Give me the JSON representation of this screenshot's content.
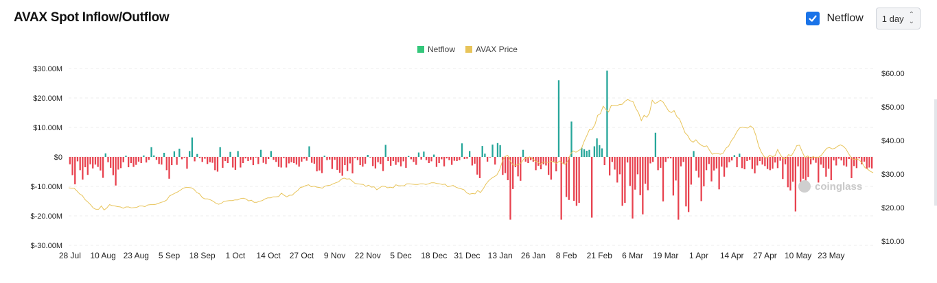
{
  "header": {
    "title": "AVAX Spot Inflow/Outflow",
    "netflow_label": "Netflow",
    "netflow_checked": true,
    "interval": "1 day"
  },
  "watermark": "coinglass",
  "colors": {
    "inflow": "#26a69a",
    "outflow": "#e8424f",
    "price": "#e8c45a",
    "legend_netflow": "#34c77b",
    "legend_price": "#e8c45a",
    "checkbox": "#1a73e8"
  },
  "chart_data": {
    "type": "bar",
    "legend": [
      "Netflow",
      "AVAX Price"
    ],
    "y_left_ticks": [
      "$30.00M",
      "$20.00M",
      "$10.00M",
      "$0",
      "$-10.00M",
      "$-20.00M",
      "$-30.00M"
    ],
    "y_left_range": [
      -30,
      30
    ],
    "y_right_ticks": [
      "$60.00",
      "$50.00",
      "$40.00",
      "$30.00",
      "$20.00",
      "$10.00"
    ],
    "y_right_range": [
      10,
      60
    ],
    "x_ticks": [
      "28 Jul",
      "10 Aug",
      "23 Aug",
      "5 Sep",
      "18 Sep",
      "1 Oct",
      "14 Oct",
      "27 Oct",
      "9 Nov",
      "22 Nov",
      "5 Dec",
      "18 Dec",
      "31 Dec",
      "13 Jan",
      "26 Jan",
      "8 Feb",
      "21 Feb",
      "6 Mar",
      "19 Mar",
      "1 Apr",
      "14 Apr",
      "27 Apr",
      "10 May",
      "23 May"
    ],
    "start_date": "28 Jul",
    "num_days": 302,
    "netflow_unit": "$M",
    "netflow": [
      -2.5,
      -6.2,
      -9.3,
      -1.5,
      -4.5,
      -7.7,
      -3.5,
      -6.1,
      -2.5,
      -3.9,
      -2.6,
      -3.4,
      -4.6,
      -7.1,
      1.2,
      -1.8,
      -3.7,
      -6.2,
      -9.7,
      -4.3,
      -3.8,
      -1.8,
      0.4,
      -3.5,
      -2.1,
      -3.4,
      -2.7,
      -1.6,
      -2.1,
      0.5,
      -1.9,
      -1.0,
      3.3,
      0.5,
      -1.0,
      -2.4,
      -2.6,
      1.4,
      -4.5,
      -7.4,
      -2.8,
      1.9,
      -2.7,
      2.8,
      -0.8,
      -0.3,
      -4.0,
      2.0,
      6.6,
      -1.5,
      1.0,
      -0.4,
      -1.7,
      -0.6,
      -2.4,
      -1.8,
      -2.0,
      -4.5,
      -5.0,
      3.3,
      -3.7,
      -1.4,
      -2.1,
      1.7,
      -3.6,
      -4.4,
      2.0,
      -3.6,
      -2.1,
      -0.5,
      -1.4,
      -1.0,
      -2.8,
      -0.2,
      -2.4,
      2.4,
      -2.0,
      -2.4,
      -0.7,
      2.0,
      -1.0,
      -1.7,
      -3.4,
      -3.6,
      -0.4,
      -3.6,
      -2.2,
      -1.8,
      -2.1,
      -2.6,
      -3.3,
      -1.6,
      -0.6,
      -1.3,
      3.6,
      -2.0,
      -2.3,
      -4.9,
      -4.6,
      -5.5,
      0.4,
      -1.1,
      -0.9,
      -4.1,
      -1.0,
      -4.4,
      -5.4,
      -6.4,
      -2.8,
      -4.8,
      -2.2,
      -5.6,
      -0.4,
      -1.1,
      -2.8,
      -3.3,
      -2.3,
      0.7,
      -0.2,
      -3.1,
      -3.9,
      -1.8,
      -2.4,
      -4.8,
      4.1,
      -1.4,
      -3.0,
      -1.4,
      -2.7,
      -1.8,
      -3.2,
      -1.5,
      -3.7,
      0.3,
      -0.8,
      -1.7,
      -2.7,
      1.5,
      -0.9,
      1.8,
      -1.1,
      -2.1,
      -1.5,
      0.8,
      -3.4,
      -2.1,
      -0.8,
      -3.2,
      -0.5,
      -1.1,
      -2.7,
      -1.3,
      -1.4,
      -1.1,
      4.6,
      -0.7,
      -0.6,
      2.0,
      -2.9,
      -2.3,
      -6.0,
      -7.2,
      3.7,
      1.1,
      -1.6,
      -0.2,
      4.2,
      -2.6,
      4.7,
      4.0,
      -6.1,
      -5.5,
      -7.9,
      -21.3,
      -10.9,
      -3.5,
      -6.6,
      -8.1,
      2.4,
      -1.6,
      -2.1,
      -1.1,
      -1.6,
      -4.5,
      -3.0,
      -4.2,
      -2.5,
      -2.9,
      -6.1,
      -7.7,
      -1.6,
      -4.9,
      26.0,
      -21.3,
      -2.4,
      -13.6,
      -14.6,
      12.0,
      -14.9,
      -16.6,
      -15.6,
      3.1,
      2.6,
      2.1,
      2.4,
      -20.6,
      3.6,
      6.3,
      4.0,
      2.9,
      -2.8,
      29.3,
      -6.3,
      -1.7,
      -4.3,
      -8.7,
      -5.9,
      -16.6,
      -15.6,
      -1.9,
      -9.8,
      -20.9,
      -11.1,
      -5.9,
      -13.0,
      -19.5,
      -9.1,
      -11.3,
      -2.2,
      -1.7,
      8.2,
      -4.5,
      -3.7,
      -15.1,
      -1.7,
      -0.5,
      -0.5,
      -13.1,
      -8.0,
      -21.3,
      -3.2,
      -1.7,
      -16.8,
      -18.7,
      -9.4,
      2.0,
      -4.7,
      -7.0,
      -15.0,
      -10.0,
      -4.5,
      -2.4,
      -8.3,
      -4.6,
      -3.9,
      -11.0,
      -3.3,
      -6.7,
      -3.6,
      -1.8,
      -1.2,
      0.6,
      -3.5,
      1.1,
      -3.8,
      -4.2,
      -1.4,
      -1.0,
      -4.1,
      -5.6,
      -2.9,
      -1.4,
      -2.6,
      -3.1,
      -4.1,
      -4.5,
      -4.0,
      -1.9,
      -3.8,
      -1.3,
      -7.5,
      -2.5,
      -10.3,
      -11.4,
      -8.4,
      -18.5,
      -3.2,
      -11.5,
      -7.4,
      -9.6,
      -6.8,
      -2.5,
      -1.1,
      -2.0,
      -8.7,
      -2.6,
      -3.7,
      -6.7,
      -4.0,
      -7.9,
      -1.2,
      -2.9,
      -0.6,
      -1.2,
      -2.9,
      -3.3,
      -0.7,
      -7.2,
      -3.1,
      -3.8,
      -0.5,
      -2.5,
      -1.6,
      -4.0,
      -3.6,
      -3.9
    ],
    "price_unit": "$",
    "price": [
      25.9,
      25.8,
      25.8,
      25.0,
      24.1,
      23.6,
      22.4,
      21.7,
      20.9,
      19.9,
      19.5,
      19.5,
      20.5,
      19.3,
      19.9,
      20.9,
      20.6,
      20.5,
      20.3,
      20.2,
      19.8,
      20.2,
      20.2,
      19.9,
      20.0,
      20.1,
      20.5,
      20.5,
      20.3,
      20.8,
      20.9,
      20.9,
      21.0,
      21.3,
      21.6,
      21.8,
      22.3,
      23.5,
      23.9,
      24.3,
      24.7,
      25.2,
      25.8,
      26.0,
      26.0,
      25.9,
      25.4,
      24.5,
      24.1,
      23.0,
      22.6,
      22.6,
      22.3,
      21.9,
      21.3,
      21.0,
      21.3,
      21.9,
      22.0,
      22.1,
      22.1,
      22.3,
      22.3,
      22.7,
      22.8,
      22.6,
      22.0,
      22.2,
      21.6,
      21.6,
      21.9,
      22.1,
      22.6,
      22.9,
      22.9,
      23.2,
      23.2,
      23.3,
      24.3,
      23.7,
      23.2,
      23.7,
      23.7,
      24.5,
      25.1,
      26.0,
      26.2,
      26.6,
      26.8,
      26.2,
      26.4,
      26.1,
      26.0,
      25.8,
      26.4,
      26.6,
      26.7,
      27.1,
      27.4,
      27.7,
      28.5,
      28.8,
      28.5,
      28.6,
      27.9,
      27.2,
      27.1,
      27.0,
      26.9,
      26.3,
      26.7,
      26.1,
      26.2,
      25.3,
      25.9,
      26.4,
      26.3,
      25.9,
      26.1,
      25.9,
      26.8,
      26.5,
      26.5,
      26.5,
      27.1,
      27.1,
      27.0,
      26.9,
      26.9,
      27.1,
      27.1,
      26.9,
      27.1,
      27.4,
      27.4,
      27.2,
      27.1,
      26.9,
      27.0,
      26.2,
      26.4,
      26.6,
      26.1,
      25.8,
      25.6,
      25.3,
      24.4,
      24.0,
      24.2,
      24.1,
      25.1,
      24.5,
      25.6,
      27.0,
      28.0,
      28.7,
      29.2,
      29.7,
      31.2,
      33.7,
      35.2,
      35.6,
      33.8,
      32.7,
      32.6,
      32.9,
      33.4,
      34.6,
      34.7,
      35.1,
      34.6,
      33.9,
      33.6,
      32.9,
      33.6,
      33.5,
      33.5,
      33.8,
      33.5,
      33.2,
      33.9,
      33.3,
      32.9,
      33.8,
      35.9,
      36.9,
      36.5,
      37.0,
      37.5,
      39.7,
      41.4,
      43.3,
      43.3,
      44.8,
      47.5,
      48.0,
      50.2,
      49.2,
      48.5,
      50.5,
      50.5,
      50.4,
      50.7,
      50.8,
      51.7,
      52.2,
      51.8,
      51.5,
      49.5,
      48.2,
      45.9,
      47.5,
      46.9,
      48.2,
      52.0,
      51.0,
      51.4,
      52.0,
      51.4,
      50.1,
      48.8,
      48.3,
      48.9,
      47.1,
      46.4,
      44.4,
      42.3,
      41.5,
      40.0,
      39.5,
      40.2,
      39.2,
      38.6,
      38.2,
      38.4,
      37.1,
      35.9,
      36.2,
      36.1,
      35.9,
      36.2,
      37.7,
      38.3,
      39.9,
      41.0,
      42.6,
      43.7,
      44.0,
      43.8,
      43.7,
      44.3,
      43.7,
      41.5,
      38.4,
      36.5,
      35.2,
      34.7,
      35.6,
      35.2,
      35.4,
      37.3,
      35.7,
      34.6,
      34.6,
      35.8,
      35.4,
      36.8,
      38.5,
      38.6,
      36.6,
      34.9,
      35.4,
      34.6,
      35.2,
      34.8,
      35.0,
      35.6,
      36.7,
      37.7,
      37.9,
      37.5,
      37.7,
      38.3,
      38.7,
      38.3,
      37.5,
      36.1,
      34.8,
      34.3,
      34.5,
      34.1,
      33.3,
      31.9,
      31.4,
      30.8,
      30.4
    ],
    "price_x_ticks_note": "",
    "legend_placement": "top-center",
    "grid": true
  }
}
